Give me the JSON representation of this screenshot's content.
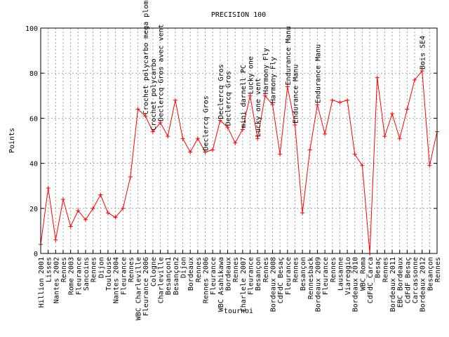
{
  "chart_data": {
    "type": "line",
    "title": "PRECISION 100",
    "xlabel": "tournoi",
    "ylabel": "Points",
    "ylim": [
      0,
      100
    ],
    "yticks": [
      0,
      20,
      40,
      60,
      80,
      100
    ],
    "grid": true,
    "line_color": "#ff0000",
    "categories": [
      "Hillion 2001",
      "Lisses",
      "Nantes 2002",
      "Rennes",
      "Rome 2003",
      "Fleurance",
      "Sancoins",
      "Rennes",
      "Dijon",
      "Toulouse",
      "Nantes 2004",
      "Fleurance",
      "Rennes",
      "WBC Charleville",
      "Fleurance 2006",
      "Cologne",
      "Charleville",
      "Besançon1",
      "Besançon2",
      "Dijon",
      "Bordeaux",
      "Rennes",
      "Rennes 2006",
      "Fleurance",
      "WBC Asahikawa",
      "Bordeaux",
      "Rennes",
      "Charlele 2007",
      "Fleurance",
      "Besançon",
      "Rennes",
      "Bordeaux 2008",
      "CdFdC Besaç",
      "Fleurance",
      "Rennes",
      "Besançon",
      "Rennesback",
      "Bordeaux 2009",
      "Fleurance",
      "Rennes",
      "Lausanne",
      "Viareggio",
      "Bordeaux 2010",
      "WBC_Roma",
      "CdFdC_Carca",
      "Besaç",
      "Rennes",
      "Bordeaux 2011",
      "EBC Bordeaux",
      "CdFdF Besaç",
      "Carcassonne",
      "Bordeaux 2012",
      "Besançon",
      "Rennes"
    ],
    "values": [
      4,
      29,
      6,
      24,
      12,
      19,
      15,
      20,
      26,
      18,
      16,
      20,
      34,
      64,
      61,
      54,
      58,
      52,
      68,
      51,
      45,
      51,
      45,
      46,
      59,
      56,
      49,
      55,
      70,
      51,
      70,
      66,
      44,
      74,
      57,
      18,
      46,
      66,
      53,
      68,
      67,
      68,
      44,
      39,
      0,
      78,
      52,
      62,
      51,
      64,
      77,
      81,
      39,
      54
    ],
    "annotations": [
      {
        "index": 14,
        "text": "Crochet polycarbo mega plomb"
      },
      {
        "index": 15,
        "text": "Crochet polycarbo"
      },
      {
        "index": 16,
        "text": "Declercq Gros avec vent"
      },
      {
        "index": 22,
        "text": "Declercq Gros"
      },
      {
        "index": 24,
        "text": "Declercq Gros"
      },
      {
        "index": 25,
        "text": "Declercq Gros"
      },
      {
        "index": 27,
        "text": "mini darnell PC"
      },
      {
        "index": 28,
        "text": "Lucky one"
      },
      {
        "index": 29,
        "text": "Lucky one vent"
      },
      {
        "index": 30,
        "text": "Harmony Fly"
      },
      {
        "index": 31,
        "text": "Harmony Fly"
      },
      {
        "index": 33,
        "text": "Endurance Manu"
      },
      {
        "index": 34,
        "text": "Endurance Manu"
      },
      {
        "index": 37,
        "text": "Endurance Manu"
      },
      {
        "index": 51,
        "text": "Bois SE4"
      }
    ]
  }
}
